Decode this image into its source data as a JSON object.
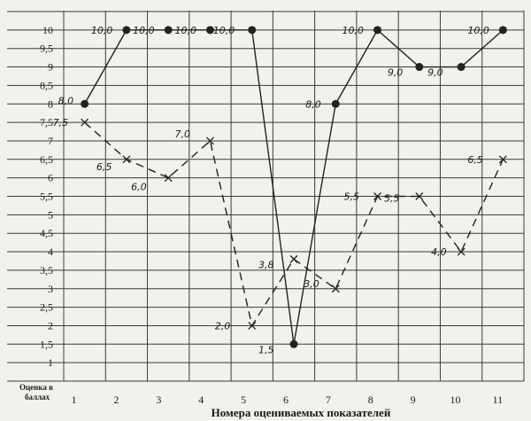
{
  "chart_data": {
    "type": "line",
    "x": [
      1,
      2,
      3,
      4,
      5,
      6,
      7,
      8,
      9,
      10,
      11
    ],
    "series": [
      {
        "marker": "dot",
        "values": [
          8.0,
          10.0,
          10.0,
          10.0,
          10.0,
          1.5,
          8.0,
          10.0,
          9.0,
          9.0,
          10.0
        ],
        "labels": [
          "8,0",
          "10,0",
          "10,0",
          "10,0",
          "10,0",
          "1,5",
          "8,0",
          "10,0",
          "9,0",
          "9,0",
          "10,0"
        ]
      },
      {
        "marker": "cross",
        "values": [
          7.5,
          6.5,
          6.0,
          7.0,
          2.0,
          3.8,
          3.0,
          5.5,
          5.5,
          4.0,
          6.5
        ],
        "labels": [
          "7,5",
          "6,5",
          "6,0",
          "7,0",
          "2,0",
          "3,8",
          "3,0",
          "5,5",
          "5,5",
          "4,0",
          "6,5"
        ]
      }
    ],
    "y_ticks": [
      "1",
      "1,5",
      "2",
      "2,5",
      "3",
      "3,5",
      "4",
      "4,5",
      "5",
      "5,5",
      "6",
      "6,5",
      "7",
      "7,5",
      "8",
      "8,5",
      "9",
      "9,5",
      "10"
    ],
    "x_ticks": [
      "1",
      "2",
      "3",
      "4",
      "5",
      "6",
      "7",
      "8",
      "9",
      "10",
      "11"
    ],
    "ylabel_lines": [
      "Оценка в",
      "баллах"
    ],
    "xlabel": "Номера оцениваемых показателей",
    "ylim": [
      0.5,
      10.5
    ],
    "xlim": [
      0.5,
      11.5
    ],
    "grid": true,
    "colors": {
      "background": "#f3f1ec",
      "ink": "#222222"
    }
  }
}
